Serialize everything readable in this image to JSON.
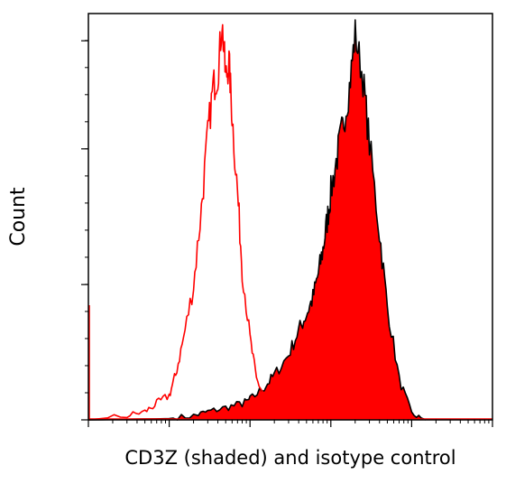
{
  "chart_data": {
    "type": "area",
    "title": "",
    "xlabel": "CD3Z (shaded) and isotype control",
    "ylabel": "Count",
    "x_scale": "log",
    "xlim": [
      0.1,
      10000
    ],
    "ylim": [
      0,
      100
    ],
    "grid": false,
    "legend": "none",
    "series": [
      {
        "style": "filled",
        "fill": "#ff0000",
        "edge": "#000000",
        "x": [
          0.1,
          1,
          2,
          3,
          5,
          8,
          10,
          15,
          20,
          30,
          40,
          50,
          60,
          70,
          80,
          90,
          100,
          120,
          140,
          170,
          200,
          250,
          300,
          400,
          500,
          700,
          1000,
          1500
        ],
        "y": [
          0,
          0.3,
          1,
          2,
          3,
          4,
          5,
          8,
          11,
          16,
          22,
          26,
          30,
          36,
          42,
          49,
          56,
          65,
          72,
          82,
          95,
          84,
          68,
          46,
          28,
          10,
          1.5,
          0
        ]
      },
      {
        "style": "outline",
        "color": "#ff0000",
        "x": [
          0.1,
          0.3,
          0.5,
          0.7,
          1.0,
          1.2,
          1.5,
          2.0,
          2.5,
          3.0,
          3.5,
          4.0,
          4.5,
          5.0,
          5.5,
          6.0,
          7.0,
          8.0,
          10,
          12,
          15,
          20,
          30,
          50,
          100
        ],
        "y": [
          0,
          1,
          2,
          4,
          6,
          11,
          20,
          33,
          52,
          70,
          82,
          85,
          98,
          84,
          88,
          75,
          56,
          37,
          20,
          10,
          6,
          3,
          1,
          0.3,
          0
        ]
      }
    ]
  }
}
